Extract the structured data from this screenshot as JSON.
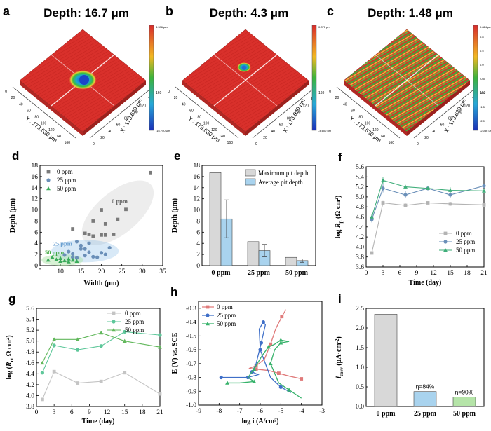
{
  "chart_data": [
    {
      "panel": "a",
      "type": "heatmap",
      "title": "Depth: 16.7 μm",
      "axis_labels": [
        "Y : 173.630 μm",
        "X : 173.630 μm"
      ],
      "ticks": [
        "0",
        "20",
        "40",
        "60",
        "80",
        "100",
        "120",
        "140",
        "160"
      ],
      "colorbar_max": "3.396 μm",
      "colorbar_min": "-16.750 μm",
      "colors": {
        "base": "#d9302b",
        "pit": "#1b4fc4"
      }
    },
    {
      "panel": "b",
      "type": "heatmap",
      "title": "Depth: 4.3 μm",
      "axis_labels": [
        "Y : 173.630 μm",
        "X : 173.630 μm"
      ],
      "ticks": [
        "0",
        "20",
        "40",
        "60",
        "80",
        "100",
        "120",
        "140",
        "160"
      ],
      "colorbar_max": "0.371 μm",
      "colorbar_min": "-4.600 μm",
      "colors": {
        "base": "#d9302b",
        "pit": "#2a6ad0"
      }
    },
    {
      "panel": "c",
      "type": "heatmap",
      "title": "Depth: 1.48 μm",
      "axis_labels": [
        "Y : 173.630 μm",
        "X : 173.630 μm"
      ],
      "ticks": [
        "0",
        "20",
        "40",
        "60",
        "80",
        "100",
        "120",
        "140",
        "160"
      ],
      "colorbar_max": "0.824 μm",
      "colorbar_min": "-2.056 μm",
      "colorbar_ticks": [
        "0.8",
        "0.5",
        "0.0",
        "-0.5",
        "-1.0",
        "-1.5",
        "-2.0"
      ],
      "colors": {
        "base": "#d9302b",
        "green": "#3cae3a",
        "yellow": "#e8d03a"
      }
    },
    {
      "panel": "d",
      "type": "scatter",
      "xlabel": "Width (μm)",
      "ylabel": "Depth (μm)",
      "xlim": [
        5,
        35
      ],
      "ylim": [
        0,
        18
      ],
      "xticks": [
        5,
        10,
        15,
        20,
        25,
        30,
        35
      ],
      "yticks": [
        0,
        2,
        4,
        6,
        8,
        10,
        12,
        14,
        16,
        18
      ],
      "legend": "top-left",
      "region_labels": [
        "0 ppm",
        "25 ppm",
        "50 ppm"
      ],
      "series": [
        {
          "name": "0 ppm",
          "color": "#7a7a7a",
          "points": [
            [
              32,
              16.7
            ],
            [
              26,
              10.1
            ],
            [
              24,
              8.3
            ],
            [
              20,
              10
            ],
            [
              18,
              8
            ],
            [
              21,
              7.5
            ],
            [
              21,
              5.5
            ],
            [
              23,
              5.6
            ],
            [
              20,
              5.5
            ],
            [
              17,
              5.6
            ],
            [
              18,
              5.3
            ],
            [
              13,
              6.6
            ],
            [
              16,
              5.8
            ]
          ]
        },
        {
          "name": "25 ppm",
          "color": "#6a8fb8",
          "points": [
            [
              14,
              4.3
            ],
            [
              17,
              4
            ],
            [
              15,
              3
            ],
            [
              16,
              3
            ],
            [
              13,
              2.1
            ],
            [
              12,
              2.5
            ],
            [
              17,
              2.4
            ],
            [
              13,
              1.5
            ],
            [
              14,
              1.4
            ],
            [
              11,
              1.9
            ],
            [
              18,
              1.6
            ],
            [
              19,
              1.5
            ],
            [
              16,
              1.8
            ],
            [
              21,
              2
            ],
            [
              20,
              2.3
            ],
            [
              22,
              3.2
            ],
            [
              15,
              3.6
            ]
          ]
        },
        {
          "name": "50 ppm",
          "color": "#3aaa5a",
          "points": [
            [
              8,
              1.5
            ],
            [
              9,
              1.1
            ],
            [
              10,
              1.3
            ],
            [
              11,
              0.9
            ],
            [
              12,
              1.2
            ],
            [
              13,
              1.0
            ],
            [
              14,
              0.8
            ],
            [
              7,
              1.0
            ],
            [
              10,
              0.8
            ],
            [
              12,
              0.7
            ]
          ]
        }
      ]
    },
    {
      "panel": "e",
      "type": "bar",
      "categories": [
        "0 ppm",
        "25 ppm",
        "50 ppm"
      ],
      "ylabel": "Depth (μm)",
      "ylim": [
        0,
        18
      ],
      "yticks": [
        0,
        2,
        4,
        6,
        8,
        10,
        12,
        14,
        16,
        18
      ],
      "legend": "top-right",
      "series": [
        {
          "name": "Maximum pit depth",
          "color": "#d8d8d8",
          "values": [
            16.7,
            4.3,
            1.48
          ]
        },
        {
          "name": "Average pit depth",
          "color": "#a9d3ee",
          "values": [
            8.4,
            2.7,
            0.9
          ],
          "errors": [
            3.4,
            1.1,
            0.3
          ]
        }
      ]
    },
    {
      "panel": "f",
      "type": "line",
      "xlabel": "Time (day)",
      "ylabel": "log R_p (Ω cm²)",
      "ylabel_parts": {
        "pre": "log ",
        "sym": "R",
        "sub": "p",
        "unit": " (Ω cm",
        "exp": "2",
        "post": ")"
      },
      "xlim": [
        0,
        21
      ],
      "ylim": [
        3.6,
        5.6
      ],
      "xticks": [
        0,
        3,
        6,
        9,
        12,
        15,
        18,
        21
      ],
      "yticks": [
        3.6,
        3.8,
        4.0,
        4.2,
        4.4,
        4.6,
        4.8,
        5.0,
        5.2,
        5.4,
        5.6
      ],
      "legend": "bottom-right",
      "x": [
        1,
        3,
        7,
        11,
        15,
        21
      ],
      "series": [
        {
          "name": "0 ppm",
          "color": "#b3b3b3",
          "values": [
            3.88,
            4.88,
            4.83,
            4.88,
            4.86,
            4.84
          ],
          "errors": [
            0.03,
            0.04,
            0.04,
            0.03,
            0.04,
            0.04
          ]
        },
        {
          "name": "25 ppm",
          "color": "#6a8fb8",
          "values": [
            4.55,
            5.17,
            5.04,
            5.17,
            5.04,
            5.22
          ],
          "errors": [
            0.06,
            0.08,
            0.07,
            0.04,
            0.07,
            0.04
          ]
        },
        {
          "name": "50 ppm",
          "color": "#3fae7a",
          "values": [
            4.6,
            5.33,
            5.2,
            5.17,
            5.13,
            5.12
          ],
          "errors": [
            0.05,
            0.07,
            0.04,
            0.03,
            0.06,
            0.04
          ]
        }
      ]
    },
    {
      "panel": "g",
      "type": "line",
      "xlabel": "Time (day)",
      "ylabel": "log (R_ct Ω cm²)",
      "ylabel_parts": {
        "pre": "log (",
        "sym": "R",
        "sub": "ct",
        "unit": " Ω cm",
        "exp": "2",
        "post": ")"
      },
      "xlim": [
        0,
        21
      ],
      "ylim": [
        3.8,
        5.6
      ],
      "xticks": [
        0,
        3,
        6,
        9,
        12,
        15,
        18,
        21
      ],
      "yticks": [
        3.8,
        4.0,
        4.2,
        4.4,
        4.6,
        4.8,
        5.0,
        5.2,
        5.4,
        5.6
      ],
      "legend": "top-right",
      "x": [
        1,
        3,
        7,
        11,
        15,
        21
      ],
      "series": [
        {
          "name": "0 ppm",
          "color": "#c4c4c4",
          "values": [
            3.93,
            4.44,
            4.23,
            4.26,
            4.42,
            4.03
          ]
        },
        {
          "name": "25 ppm",
          "color": "#5ec79a",
          "values": [
            4.42,
            4.92,
            4.84,
            4.91,
            5.17,
            5.11
          ]
        },
        {
          "name": "50 ppm",
          "color": "#62b85c",
          "values": [
            4.6,
            5.03,
            5.03,
            5.15,
            5.0,
            4.89
          ]
        }
      ]
    },
    {
      "panel": "h",
      "type": "line",
      "xlabel": "log i  (A/cm²)",
      "ylabel": "E (V) vs. SCE",
      "xlim": [
        -9,
        -3
      ],
      "ylim": [
        -1.0,
        -0.25
      ],
      "xticks": [
        -9,
        -8,
        -7,
        -6,
        -5,
        -4,
        -3
      ],
      "yticks": [
        -0.3,
        -0.4,
        -0.5,
        -0.6,
        -0.7,
        -0.8,
        -0.9,
        -1.0
      ],
      "legend": "top-left",
      "series": [
        {
          "name": "0 ppm",
          "color": "#e07a7a",
          "points": [
            [
              -4.0,
              -0.81
            ],
            [
              -4.6,
              -0.79
            ],
            [
              -5.1,
              -0.77
            ],
            [
              -5.6,
              -0.75
            ],
            [
              -6.2,
              -0.74
            ],
            [
              -6.55,
              -0.735
            ],
            [
              -6.2,
              -0.715
            ],
            [
              -5.8,
              -0.67
            ],
            [
              -5.5,
              -0.56
            ],
            [
              -5.25,
              -0.45
            ],
            [
              -4.95,
              -0.36
            ],
            [
              -4.75,
              -0.31
            ]
          ]
        },
        {
          "name": "25 ppm",
          "color": "#3f6fc8",
          "points": [
            [
              -7.9,
              -0.8
            ],
            [
              -7.2,
              -0.8
            ],
            [
              -6.6,
              -0.8
            ],
            [
              -6.1,
              -0.78
            ],
            [
              -6.4,
              -0.76
            ],
            [
              -6.2,
              -0.7
            ],
            [
              -5.95,
              -0.55
            ],
            [
              -5.75,
              -0.42
            ],
            [
              -5.85,
              -0.4
            ],
            [
              -6.05,
              -0.45
            ],
            [
              -6.0,
              -0.6
            ],
            [
              -5.5,
              -0.8
            ],
            [
              -5.0,
              -0.87
            ],
            [
              -4.5,
              -0.91
            ]
          ]
        },
        {
          "name": "50 ppm",
          "color": "#36b26a",
          "points": [
            [
              -7.6,
              -0.84
            ],
            [
              -7.0,
              -0.84
            ],
            [
              -6.3,
              -0.83
            ],
            [
              -6.6,
              -0.8
            ],
            [
              -6.3,
              -0.74
            ],
            [
              -5.9,
              -0.64
            ],
            [
              -5.6,
              -0.58
            ],
            [
              -5.3,
              -0.56
            ],
            [
              -5.0,
              -0.53
            ],
            [
              -4.6,
              -0.54
            ],
            [
              -5.0,
              -0.55
            ],
            [
              -5.3,
              -0.6
            ],
            [
              -5.5,
              -0.7
            ],
            [
              -5.1,
              -0.84
            ],
            [
              -4.6,
              -0.89
            ],
            [
              -4.0,
              -0.95
            ]
          ]
        }
      ]
    },
    {
      "panel": "i",
      "type": "bar",
      "categories": [
        "0 ppm",
        "25 ppm",
        "50 ppm"
      ],
      "ylabel": "i_corr (μA·cm⁻²)",
      "ylabel_parts": {
        "sym": "i",
        "sub": "corr",
        "unit": " (μA·cm",
        "exp": "-2",
        "post": ")"
      },
      "ylim": [
        0,
        2.5
      ],
      "yticks": [
        0.0,
        0.5,
        1.0,
        1.5,
        2.0,
        2.5
      ],
      "values": [
        2.35,
        0.38,
        0.24
      ],
      "colors": [
        "#d8d8d8",
        "#a9d3ee",
        "#b5e4a8"
      ],
      "annotations": [
        "",
        "η=84%",
        "η=90%"
      ]
    }
  ]
}
